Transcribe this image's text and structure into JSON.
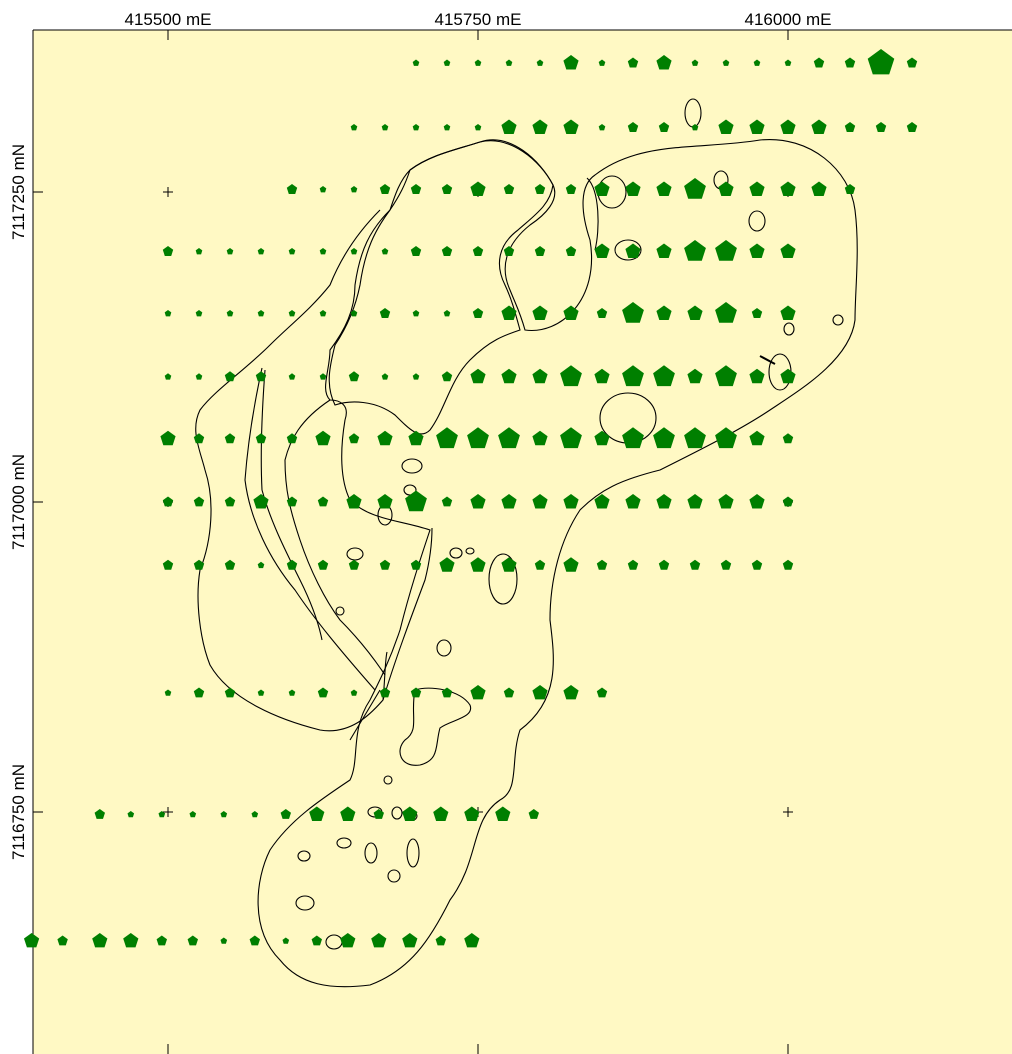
{
  "map": {
    "background_color": "#fff9c4",
    "marker_color": "#007f00",
    "outline_color": "#000000",
    "x_labels": [
      "415500 mE",
      "415750 mE",
      "416000 mE"
    ],
    "y_labels": [
      "7117250 mN",
      "7117000 mN",
      "7116750 mN"
    ],
    "grid_crosses": [
      {
        "e": 415500,
        "n": 7117250
      },
      {
        "e": 415750,
        "n": 7117250
      },
      {
        "e": 416000,
        "n": 7117250
      },
      {
        "e": 415500,
        "n": 7117000
      },
      {
        "e": 415750,
        "n": 7117000
      },
      {
        "e": 416000,
        "n": 7117000
      },
      {
        "e": 415500,
        "n": 7116750
      },
      {
        "e": 415750,
        "n": 7116750
      },
      {
        "e": 416000,
        "n": 7116750
      }
    ],
    "sample_rows": [
      {
        "n": 7117354,
        "points": [
          [
            415700,
            1
          ],
          [
            415725,
            1
          ],
          [
            415750,
            1
          ],
          [
            415775,
            1
          ],
          [
            415800,
            1
          ],
          [
            415825,
            3
          ],
          [
            415850,
            1
          ],
          [
            415875,
            2
          ],
          [
            415900,
            3
          ],
          [
            415925,
            1
          ],
          [
            415950,
            1
          ],
          [
            415975,
            1
          ],
          [
            416000,
            1
          ],
          [
            416025,
            2
          ],
          [
            416050,
            2
          ],
          [
            416075,
            5
          ],
          [
            416100,
            2
          ]
        ]
      },
      {
        "n": 7117302,
        "points": [
          [
            415650,
            1
          ],
          [
            415675,
            1
          ],
          [
            415700,
            1
          ],
          [
            415725,
            1
          ],
          [
            415750,
            1
          ],
          [
            415775,
            3
          ],
          [
            415800,
            3
          ],
          [
            415825,
            3
          ],
          [
            415850,
            1
          ],
          [
            415875,
            2
          ],
          [
            415900,
            2
          ],
          [
            415925,
            1
          ],
          [
            415950,
            3
          ],
          [
            415975,
            3
          ],
          [
            416000,
            3
          ],
          [
            416025,
            3
          ],
          [
            416050,
            2
          ],
          [
            416075,
            2
          ],
          [
            416100,
            2
          ]
        ]
      },
      {
        "n": 7117252,
        "points": [
          [
            415600,
            2
          ],
          [
            415625,
            1
          ],
          [
            415650,
            1
          ],
          [
            415675,
            2
          ],
          [
            415700,
            2
          ],
          [
            415725,
            2
          ],
          [
            415750,
            3
          ],
          [
            415775,
            2
          ],
          [
            415800,
            2
          ],
          [
            415825,
            2
          ],
          [
            415850,
            3
          ],
          [
            415875,
            3
          ],
          [
            415900,
            3
          ],
          [
            415925,
            4
          ],
          [
            415950,
            3
          ],
          [
            415975,
            3
          ],
          [
            416000,
            3
          ],
          [
            416025,
            3
          ],
          [
            416050,
            2
          ]
        ]
      },
      {
        "n": 7117202,
        "points": [
          [
            415500,
            2
          ],
          [
            415525,
            1
          ],
          [
            415550,
            1
          ],
          [
            415575,
            1
          ],
          [
            415600,
            1
          ],
          [
            415625,
            1
          ],
          [
            415650,
            1
          ],
          [
            415675,
            1
          ],
          [
            415700,
            2
          ],
          [
            415725,
            2
          ],
          [
            415750,
            2
          ],
          [
            415775,
            2
          ],
          [
            415800,
            2
          ],
          [
            415825,
            2
          ],
          [
            415850,
            3
          ],
          [
            415875,
            3
          ],
          [
            415900,
            3
          ],
          [
            415925,
            4
          ],
          [
            415950,
            4
          ],
          [
            415975,
            3
          ],
          [
            416000,
            3
          ]
        ]
      },
      {
        "n": 7117152,
        "points": [
          [
            415500,
            1
          ],
          [
            415525,
            1
          ],
          [
            415550,
            1
          ],
          [
            415575,
            1
          ],
          [
            415600,
            1
          ],
          [
            415625,
            1
          ],
          [
            415650,
            1
          ],
          [
            415675,
            2
          ],
          [
            415700,
            1
          ],
          [
            415725,
            1
          ],
          [
            415750,
            2
          ],
          [
            415775,
            3
          ],
          [
            415800,
            3
          ],
          [
            415825,
            3
          ],
          [
            415850,
            2
          ],
          [
            415875,
            4
          ],
          [
            415900,
            3
          ],
          [
            415925,
            3
          ],
          [
            415950,
            4
          ],
          [
            415975,
            2
          ],
          [
            416000,
            3
          ]
        ]
      },
      {
        "n": 7117101,
        "points": [
          [
            415500,
            1
          ],
          [
            415525,
            1
          ],
          [
            415550,
            2
          ],
          [
            415575,
            2
          ],
          [
            415600,
            1
          ],
          [
            415625,
            1
          ],
          [
            415650,
            2
          ],
          [
            415675,
            1
          ],
          [
            415700,
            1
          ],
          [
            415725,
            2
          ],
          [
            415750,
            3
          ],
          [
            415775,
            3
          ],
          [
            415800,
            3
          ],
          [
            415825,
            4
          ],
          [
            415850,
            3
          ],
          [
            415875,
            4
          ],
          [
            415900,
            4
          ],
          [
            415925,
            3
          ],
          [
            415950,
            4
          ],
          [
            415975,
            3
          ],
          [
            416000,
            3
          ]
        ]
      },
      {
        "n": 7117051,
        "points": [
          [
            415500,
            3
          ],
          [
            415525,
            2
          ],
          [
            415550,
            2
          ],
          [
            415575,
            2
          ],
          [
            415600,
            2
          ],
          [
            415625,
            3
          ],
          [
            415650,
            2
          ],
          [
            415675,
            3
          ],
          [
            415700,
            3
          ],
          [
            415725,
            4
          ],
          [
            415750,
            4
          ],
          [
            415775,
            4
          ],
          [
            415800,
            3
          ],
          [
            415825,
            4
          ],
          [
            415850,
            3
          ],
          [
            415875,
            4
          ],
          [
            415900,
            4
          ],
          [
            415925,
            4
          ],
          [
            415950,
            4
          ],
          [
            415975,
            3
          ],
          [
            416000,
            2
          ]
        ]
      },
      {
        "n": 7117000,
        "points": [
          [
            415500,
            2
          ],
          [
            415525,
            2
          ],
          [
            415550,
            2
          ],
          [
            415575,
            3
          ],
          [
            415600,
            2
          ],
          [
            415625,
            2
          ],
          [
            415650,
            3
          ],
          [
            415675,
            3
          ],
          [
            415700,
            4
          ],
          [
            415725,
            2
          ],
          [
            415750,
            3
          ],
          [
            415775,
            3
          ],
          [
            415800,
            3
          ],
          [
            415825,
            3
          ],
          [
            415850,
            3
          ],
          [
            415875,
            3
          ],
          [
            415900,
            3
          ],
          [
            415925,
            3
          ],
          [
            415950,
            3
          ],
          [
            415975,
            3
          ],
          [
            416000,
            2
          ]
        ]
      },
      {
        "n": 7116949,
        "points": [
          [
            415500,
            2
          ],
          [
            415525,
            2
          ],
          [
            415550,
            2
          ],
          [
            415575,
            1
          ],
          [
            415600,
            2
          ],
          [
            415625,
            2
          ],
          [
            415650,
            2
          ],
          [
            415675,
            2
          ],
          [
            415700,
            2
          ],
          [
            415725,
            3
          ],
          [
            415750,
            3
          ],
          [
            415775,
            3
          ],
          [
            415800,
            2
          ],
          [
            415825,
            3
          ],
          [
            415850,
            2
          ],
          [
            415875,
            2
          ],
          [
            415900,
            2
          ],
          [
            415925,
            2
          ],
          [
            415950,
            2
          ],
          [
            415975,
            2
          ],
          [
            416000,
            2
          ]
        ]
      },
      {
        "n": 7116846,
        "points": [
          [
            415500,
            1
          ],
          [
            415525,
            2
          ],
          [
            415550,
            2
          ],
          [
            415575,
            1
          ],
          [
            415600,
            1
          ],
          [
            415625,
            2
          ],
          [
            415650,
            1
          ],
          [
            415675,
            2
          ],
          [
            415700,
            2
          ],
          [
            415725,
            2
          ],
          [
            415750,
            3
          ],
          [
            415775,
            2
          ],
          [
            415800,
            3
          ],
          [
            415825,
            3
          ],
          [
            415850,
            2
          ]
        ]
      },
      {
        "n": 7116748,
        "points": [
          [
            415445,
            2
          ],
          [
            415470,
            1
          ],
          [
            415495,
            1
          ],
          [
            415520,
            1
          ],
          [
            415545,
            1
          ],
          [
            415570,
            1
          ],
          [
            415595,
            2
          ],
          [
            415620,
            3
          ],
          [
            415645,
            3
          ],
          [
            415670,
            2
          ],
          [
            415695,
            3
          ],
          [
            415720,
            3
          ],
          [
            415745,
            3
          ],
          [
            415770,
            3
          ],
          [
            415795,
            2
          ]
        ]
      },
      {
        "n": 7116646,
        "points": [
          [
            415390,
            3
          ],
          [
            415415,
            2
          ],
          [
            415445,
            3
          ],
          [
            415470,
            3
          ],
          [
            415495,
            2
          ],
          [
            415520,
            2
          ],
          [
            415545,
            1
          ],
          [
            415570,
            2
          ],
          [
            415595,
            1
          ],
          [
            415620,
            2
          ],
          [
            415645,
            3
          ],
          [
            415670,
            3
          ],
          [
            415695,
            3
          ],
          [
            415720,
            2
          ],
          [
            415745,
            3
          ]
        ]
      }
    ]
  }
}
